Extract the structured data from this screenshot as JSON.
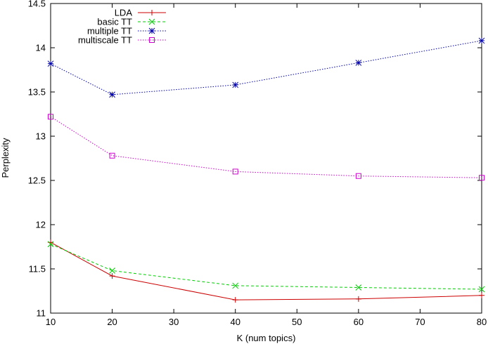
{
  "chart_data": {
    "type": "line",
    "xlabel": "K (num topics)",
    "ylabel": "Perplexity",
    "xlim": [
      10,
      80
    ],
    "ylim": [
      11,
      14.5
    ],
    "xticks": [
      10,
      20,
      30,
      40,
      50,
      60,
      70,
      80
    ],
    "yticks": [
      11,
      11.5,
      12,
      12.5,
      13,
      13.5,
      14,
      14.5
    ],
    "xtick_labels": [
      "10",
      "20",
      "30",
      "40",
      "50",
      "60",
      "70",
      "80"
    ],
    "ytick_labels": [
      "11",
      "11.5",
      "12",
      "12.5",
      "13",
      "13.5",
      "14",
      "14.5"
    ],
    "grid": false,
    "legend_position": "top-left",
    "x": [
      10,
      20,
      40,
      60,
      80
    ],
    "series": [
      {
        "name": "LDA",
        "values": [
          11.8,
          11.42,
          11.15,
          11.16,
          11.2
        ],
        "color": "#cc0000",
        "dash": "solid",
        "marker": "plus"
      },
      {
        "name": "basic TT",
        "values": [
          11.78,
          11.48,
          11.31,
          11.29,
          11.27
        ],
        "color": "#00cc00",
        "dash": "dashed",
        "marker": "cross"
      },
      {
        "name": "multiple TT",
        "values": [
          13.82,
          13.47,
          13.58,
          13.83,
          14.08
        ],
        "color": "#0000aa",
        "dash": "dotted",
        "marker": "star"
      },
      {
        "name": "multiscale TT",
        "values": [
          13.22,
          12.78,
          12.6,
          12.55,
          12.53
        ],
        "color": "#cc00cc",
        "dash": "dotted",
        "marker": "square"
      }
    ]
  }
}
